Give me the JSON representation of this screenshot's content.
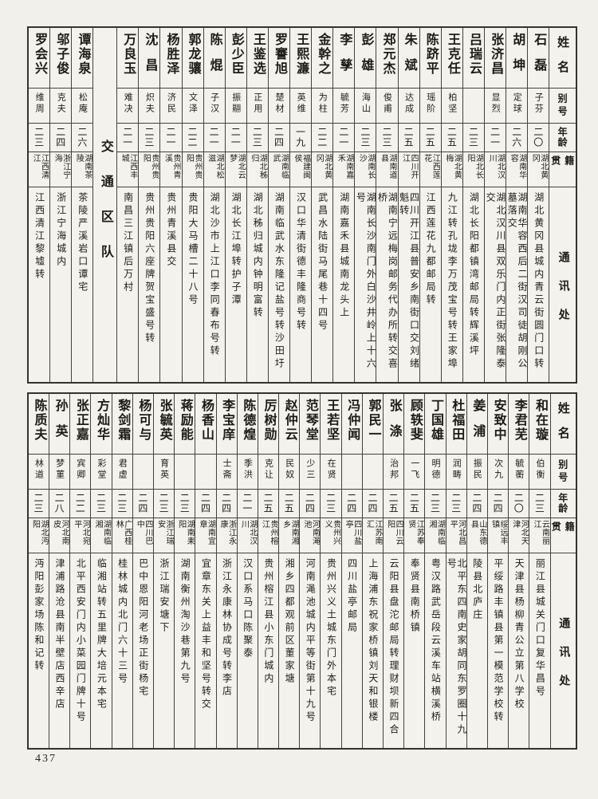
{
  "page": {
    "number": "437"
  },
  "colors": {
    "paper": "#f2f0ea",
    "ink": "#1d1b18",
    "border": "#37332c"
  },
  "headers": {
    "name": "姓名",
    "alias": "别号",
    "age": "年龄",
    "native": "籍贯",
    "address": "通讯处"
  },
  "separator_label": "交通区队",
  "table_top": {
    "entries": [
      {
        "name": "石磊",
        "alias": "子芬",
        "age": "二〇",
        "native": "湖北黄冈",
        "address": "湖北黄冈县城内青云街圆门口转"
      },
      {
        "name": "胡坤",
        "alias": "定球",
        "age": "二六",
        "native": "湖南华容",
        "address": "湖南华容西后二街汉司徒胡刚公墓落交"
      },
      {
        "name": "张济昌",
        "alias": "显烈",
        "age": "二一",
        "native": "湖北汉川",
        "address": "湖北汉川县双乐门内正街张隆泰交"
      },
      {
        "name": "吕瑞云",
        "alias": "",
        "age": "二三",
        "native": "湖北长阳",
        "address": "湖北长阳都镇湾邮局转辉溪坪"
      },
      {
        "name": "王克任",
        "alias": "柏坚",
        "age": "二五",
        "native": "湖北黄梅",
        "address": "九江转孔垅李万茂宝号转王家埠"
      },
      {
        "name": "陈跻平",
        "alias": "瑶阶",
        "age": "二五",
        "native": "江西莲花",
        "address": "江西莲花九都邮局转"
      },
      {
        "name": "朱斌",
        "alias": "达成",
        "age": "二五",
        "native": "四川开江",
        "address": "四川开江县普安乡南街口交刘绪魁转"
      },
      {
        "name": "郑元杰",
        "alias": "俊甫",
        "age": "二三",
        "native": "湖南道县",
        "address": "湖南宁远梅岗邮务代办所转交喜桥"
      },
      {
        "name": "彭雄",
        "alias": "海山",
        "age": "二三",
        "native": "湖南长沙",
        "address": "湖南长沙南门外白沙井岭上十六号"
      },
      {
        "name": "李孳",
        "alias": "毓芳",
        "age": "二一",
        "native": "湖南嘉禾",
        "address": "湖南嘉禾县城南龙头上"
      },
      {
        "name": "金幹之",
        "alias": "为柱",
        "age": "二二",
        "native": "湖北黄冈",
        "address": "武昌水陆街马尾巷十四号"
      },
      {
        "name": "王熙濂",
        "alias": "英维",
        "age": "一九",
        "native": "福建闽侯",
        "address": "汉口华清街德丰隆商号转"
      },
      {
        "name": "罗謇旭",
        "alias": "楚材",
        "age": "二四",
        "native": "湖南临武",
        "address": "湖南临武水东隆记盐号转沙田圩"
      },
      {
        "name": "王鉴选",
        "alias": "正用",
        "age": "二三",
        "native": "湖北秭归",
        "address": "湖北秭归城内钟明富转"
      },
      {
        "name": "彭少臣",
        "alias": "振翮",
        "age": "二一",
        "native": "湖北云梦",
        "address": "湖北长江埠转护子潭"
      },
      {
        "name": "陈焜",
        "alias": "子汉",
        "age": "二一",
        "native": "湖北松滋",
        "address": "湖北沙市上江口李同春布号转"
      },
      {
        "name": "郭龙骧",
        "alias": "文泽",
        "age": "二二",
        "native": "贵州贵阳",
        "address": "贵阳大马槽二十八号"
      },
      {
        "name": "杨胜泽",
        "alias": "济民",
        "age": "二一",
        "native": "贵州青溪",
        "address": "贵州青溪县交"
      },
      {
        "name": "沈昌",
        "alias": "炽夫",
        "age": "二三",
        "native": "贵州贵阳",
        "address": "贵州贵阳六座牌贺宝盛号转"
      },
      {
        "name": "万良玉",
        "alias": "难决",
        "age": "二一",
        "native": "江西丰城",
        "address": "南昌三江镇后万村"
      },
      {
        "separator": true
      },
      {
        "name": "谭海泉",
        "alias": "松庵",
        "age": "二六",
        "native": "湖南茶陵",
        "address": "茶陵严溪岩口谭宅"
      },
      {
        "name": "邬子俊",
        "alias": "克夫",
        "age": "二四",
        "native": "浙江宁海",
        "address": "浙江宁海城内"
      },
      {
        "name": "罗会兴",
        "alias": "维周",
        "age": "二三",
        "native": "江西清江",
        "address": "江西清江黎墟转"
      }
    ]
  },
  "table_bottom": {
    "entries": [
      {
        "name": "和在璇",
        "alias": "伯衡",
        "age": "二三",
        "native": "云南丽江",
        "address": "丽江县城关门口复华昌号"
      },
      {
        "name": "李君芜",
        "alias": "毓蘅",
        "age": "二〇",
        "native": "河北天津",
        "address": "天津县杨柳青公立第八学校"
      },
      {
        "name": "安致中",
        "alias": "次九",
        "age": "二四",
        "native": "绥远丰镇",
        "address": "平绥路丰镇县第一模范学校转"
      },
      {
        "name": "姜浦",
        "alias": "振民",
        "age": "二四",
        "native": "山东德县",
        "address": "陵县北庐庄"
      },
      {
        "name": "杜福田",
        "alias": "润畴",
        "age": "二三",
        "native": "河北昌平",
        "address": "北平东四南史家胡同东罗圈十九号"
      },
      {
        "name": "丁国雄",
        "alias": "明德",
        "age": "二三",
        "native": "湖南临湘",
        "address": "粤汉路武岳段云溪车站横溪桥"
      },
      {
        "name": "顾轶斐",
        "alias": "一飞",
        "age": "二五",
        "native": "江苏奉贤",
        "address": "奉贤县南桥镇"
      },
      {
        "name": "张涤",
        "alias": "治邦",
        "age": "二五",
        "native": "四川云阳",
        "address": "云阳县盘沱邮局转理财坝新四合"
      },
      {
        "name": "郭民一",
        "alias": "",
        "age": "二四",
        "native": "江苏南汇",
        "address": "上海浦东祝家桥镇刘天和银楼"
      },
      {
        "name": "冯仲闻",
        "alias": "",
        "age": "二四",
        "native": "四川盐亭",
        "address": "四川盐亭邮局"
      },
      {
        "name": "王若坚",
        "alias": "在贤",
        "age": "二三",
        "native": "贵州兴义",
        "address": "贵州兴义土城东门外本宅"
      },
      {
        "name": "范琴堂",
        "alias": "少三",
        "age": "二四",
        "native": "河南渑池",
        "address": "河南渑池城内平等街第十九号"
      },
      {
        "name": "赵仲云",
        "alias": "民奴",
        "age": "二五",
        "native": "湖南湘乡",
        "address": "湘乡四都观前区董家塘"
      },
      {
        "name": "厉树勋",
        "alias": "克让",
        "age": "二五",
        "native": "贵州榕江",
        "address": "贵州榕江县小东门城内"
      },
      {
        "name": "陈德煌",
        "alias": "季洪",
        "age": "二一",
        "native": "湖北汉川",
        "address": "汉口系马口陈聚泰"
      },
      {
        "name": "李宝庠",
        "alias": "士斋",
        "age": "二四",
        "native": "浙江永康",
        "address": "浙江永康林协成号转李店"
      },
      {
        "name": "杨香山",
        "alias": "",
        "age": "二四",
        "native": "湖南宜章",
        "address": "宜章东关上益丰和坚号转交"
      },
      {
        "name": "蒋励能",
        "alias": "",
        "age": "二三",
        "native": "湖南耒阳",
        "address": "湖南衡州淘沙巷第九号"
      },
      {
        "name": "张毓英",
        "alias": "育英",
        "age": "二三",
        "native": "浙江瑞安",
        "address": "浙江瑞安塘下"
      },
      {
        "name": "杨可与",
        "alias": "",
        "age": "二四",
        "native": "四川巴中",
        "address": "巴中恩阳河老场正街杨宅"
      },
      {
        "name": "黎剑霜",
        "alias": "君虚",
        "age": "二三",
        "native": "广西桂林",
        "address": "桂林城内北门六十三号"
      },
      {
        "name": "方灿华",
        "alias": "彩堂",
        "age": "二三",
        "native": "湖南临湘",
        "address": "临湘站转五里牌大培元本宅"
      },
      {
        "name": "张正嘉",
        "alias": "宾卿",
        "age": "二二",
        "native": "河北宛平",
        "address": "北平西安门内小菜园门牌十号"
      },
      {
        "name": "孙英",
        "alias": "梦菫",
        "age": "二八",
        "native": "河北南皮",
        "address": "津浦路沧县南半壁店西辛店"
      },
      {
        "name": "陈质夫",
        "alias": "林道",
        "age": "二三",
        "native": "湖北沔阳",
        "address": "沔阳彭家场陈和记转"
      }
    ]
  }
}
